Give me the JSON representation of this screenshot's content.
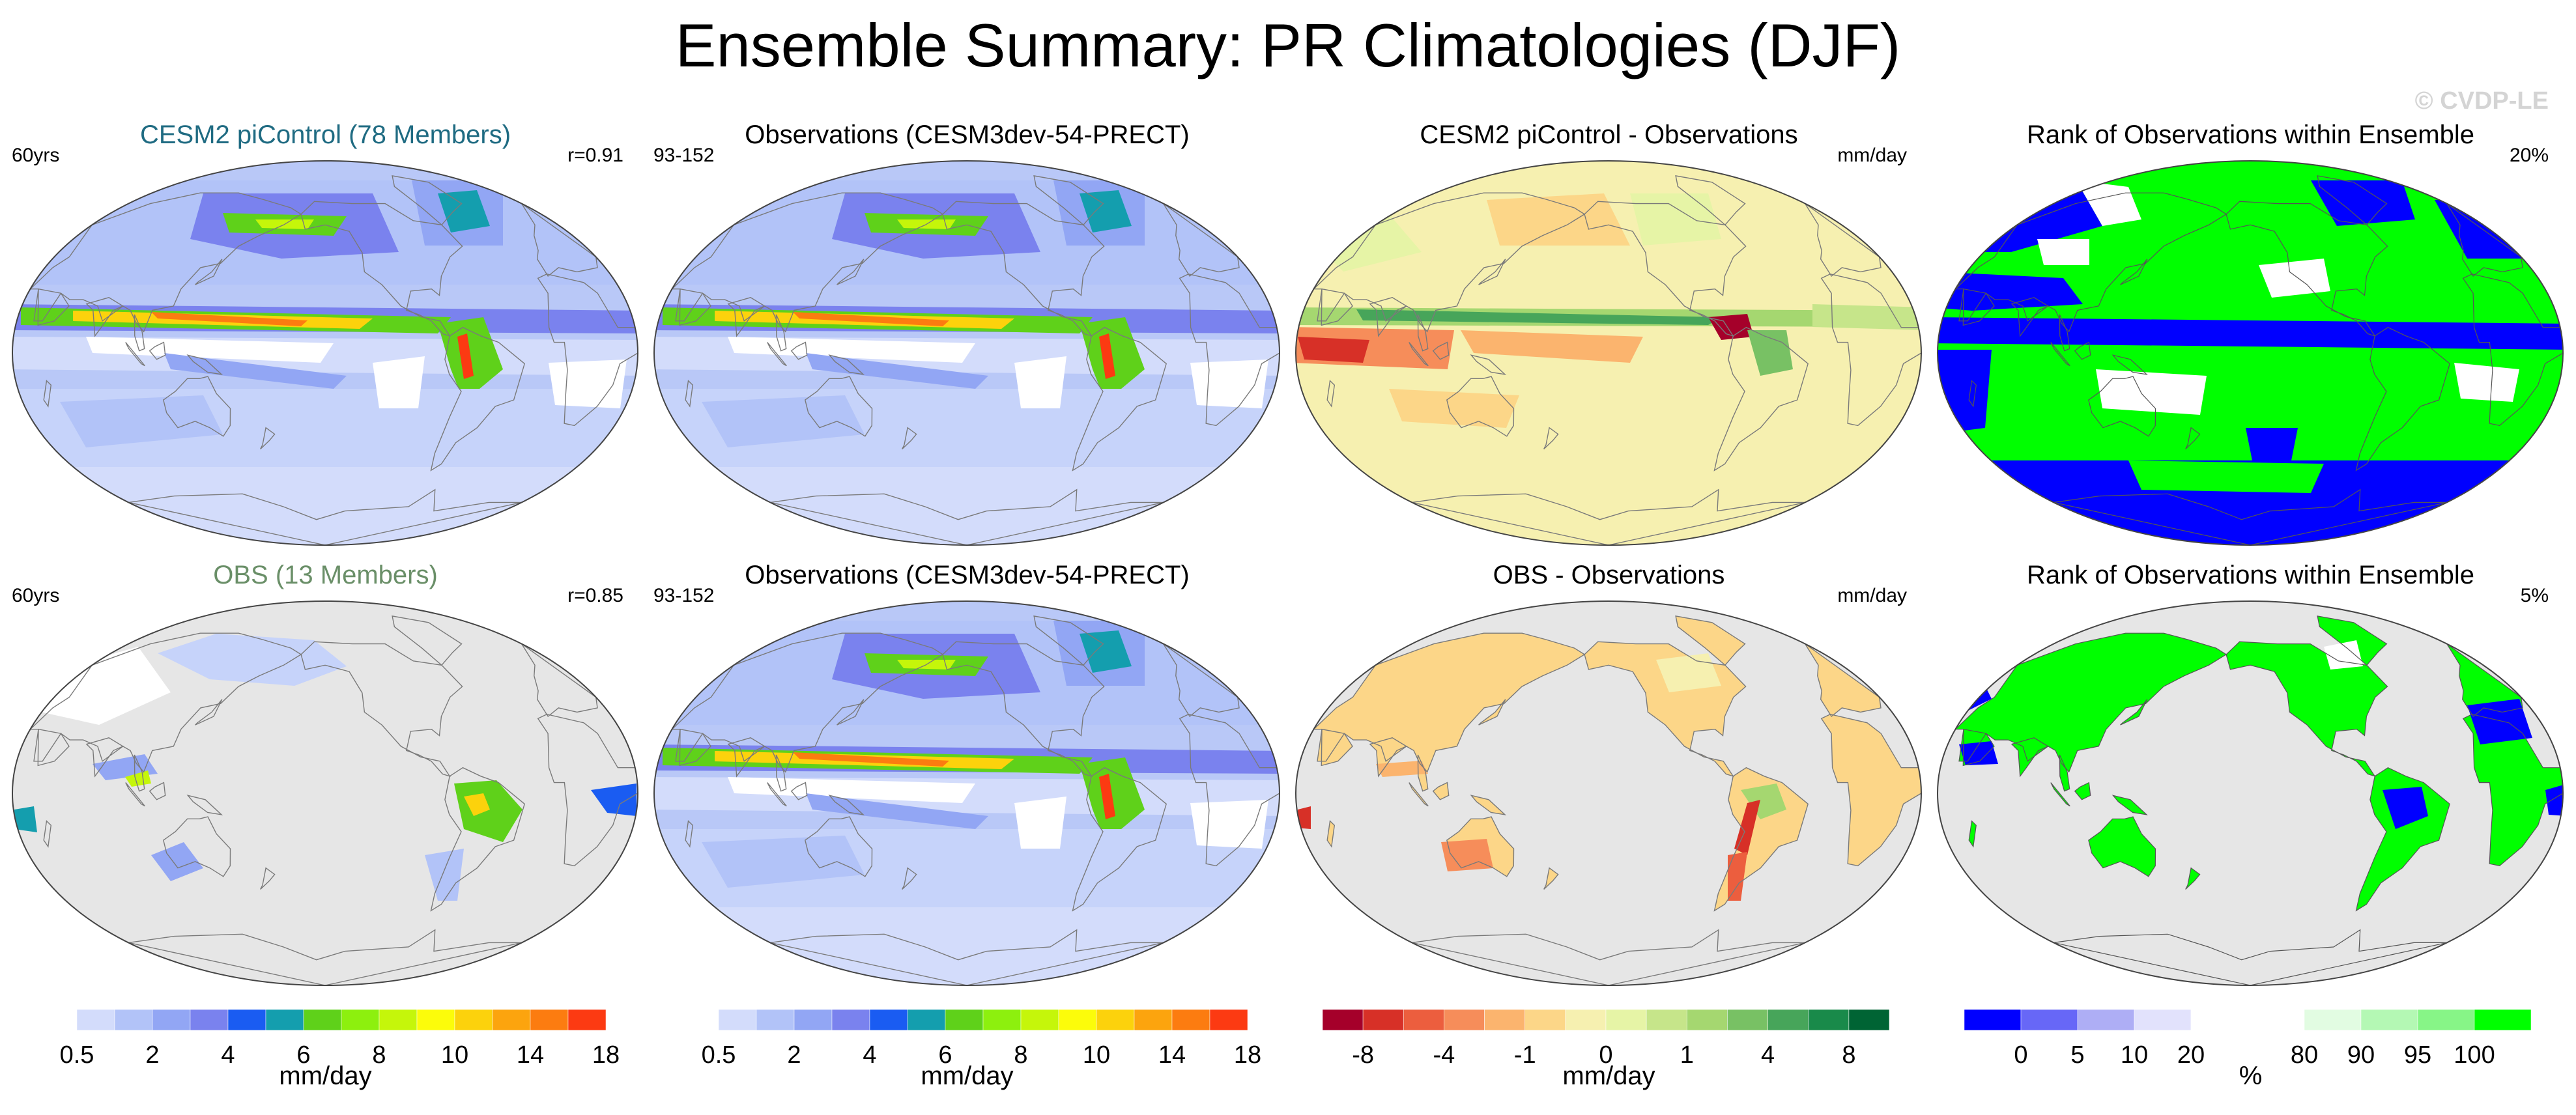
{
  "title": "Ensemble Summary: PR Climatologies (DJF)",
  "watermark": "© CVDP-LE",
  "panels": [
    {
      "title": "CESM2 piControl (78 Members)",
      "left": "60yrs",
      "right": "r=0.91",
      "title_color": "#1f6b82",
      "map_type": "precip",
      "land_only": false
    },
    {
      "title": "Observations (CESM3dev-54-PRECT)",
      "left": "93-152",
      "right": "",
      "map_type": "precip",
      "land_only": false
    },
    {
      "title": "CESM2 piControl - Observations",
      "left": "",
      "right": "mm/day",
      "map_type": "diff",
      "land_only": false
    },
    {
      "title": "Rank of Observations within Ensemble",
      "left": "",
      "right": "20%",
      "map_type": "rank",
      "land_only": false
    },
    {
      "title": "OBS (13 Members)",
      "left": "60yrs",
      "right": "r=0.85",
      "title_color": "#6a8f68",
      "map_type": "precip",
      "land_only": true
    },
    {
      "title": "Observations (CESM3dev-54-PRECT)",
      "left": "93-152",
      "right": "",
      "map_type": "precip",
      "land_only": false
    },
    {
      "title": "OBS - Observations",
      "left": "",
      "right": "mm/day",
      "map_type": "diff",
      "land_only": true
    },
    {
      "title": "Rank of Observations within Ensemble",
      "left": "",
      "right": "5%",
      "map_type": "rank",
      "land_only": true
    }
  ],
  "colorbars": [
    {
      "units": "mm/day",
      "labels": [
        "0.5",
        "2",
        "4",
        "6",
        "8",
        "10",
        "14",
        "18"
      ],
      "label_positions": [
        1,
        3,
        5,
        7,
        9,
        11,
        13,
        15
      ],
      "colors": [
        "#ffffff",
        "#d3dcfb",
        "#b2c3f8",
        "#92a6f4",
        "#7a82ee",
        "#1a5cf2",
        "#149eae",
        "#5fd11a",
        "#8df00e",
        "#c5f60a",
        "#fcfc0a",
        "#fcd20c",
        "#fca40e",
        "#fc7c10",
        "#fc3a12"
      ]
    },
    {
      "units": "mm/day",
      "labels": [
        "0.5",
        "2",
        "4",
        "6",
        "8",
        "10",
        "14",
        "18"
      ],
      "label_positions": [
        1,
        3,
        5,
        7,
        9,
        11,
        13,
        15
      ],
      "colors": [
        "#ffffff",
        "#d3dcfb",
        "#b2c3f8",
        "#92a6f4",
        "#7a82ee",
        "#1a5cf2",
        "#149eae",
        "#5fd11a",
        "#8df00e",
        "#c5f60a",
        "#fcfc0a",
        "#fcd20c",
        "#fca40e",
        "#fc7c10",
        "#fc3a12"
      ]
    },
    {
      "units": "mm/day",
      "labels": [
        "-8",
        "-4",
        "-1",
        "0",
        "1",
        "4",
        "8"
      ],
      "label_positions": [
        1,
        3,
        5,
        7,
        9,
        11,
        13
      ],
      "colors": [
        "#a5002a",
        "#d73027",
        "#ec5e3e",
        "#f68d5a",
        "#fbb46e",
        "#fcd688",
        "#f6f0b0",
        "#e6f4a6",
        "#c6e58a",
        "#a5d770",
        "#78c164",
        "#47a55a",
        "#198a4a",
        "#006434"
      ]
    },
    {
      "units": "%",
      "labels": [
        "0",
        "5",
        "10",
        "20",
        "80",
        "90",
        "95",
        "100"
      ],
      "label_positions": [
        1,
        2,
        3,
        4,
        6,
        7,
        8,
        9
      ],
      "colors": [
        "#0000ff",
        "#6767f7",
        "#aeaef5",
        "#e2e2fc",
        "#ffffff",
        "#ffffff",
        "#e2fce2",
        "#b4f8b4",
        "#87f587",
        "#00ff00"
      ]
    }
  ]
}
